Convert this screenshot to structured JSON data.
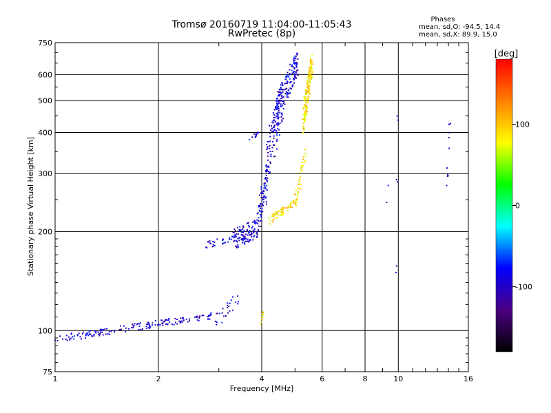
{
  "chart_data": {
    "type": "scatter",
    "title": "Tromsø 20160719 11:04:00-11:05:43",
    "subtitle": "RwPretec (8p)",
    "xlabel": "Frequency [MHz]",
    "ylabel": "Stationary phase Virtual Height [km]",
    "x_scale": "log",
    "y_scale": "log",
    "xlim": [
      1,
      16
    ],
    "ylim": [
      75,
      750
    ],
    "x_ticks": [
      1,
      2,
      4,
      6,
      8,
      10,
      16
    ],
    "x_tick_labels": [
      "1",
      "2",
      "4",
      "6",
      "8",
      "10",
      "16"
    ],
    "y_ticks": [
      75,
      100,
      200,
      300,
      400,
      500,
      600,
      750
    ],
    "y_tick_labels": [
      "75",
      "100",
      "200",
      "300",
      "400",
      "500",
      "600",
      "750"
    ],
    "grid": true,
    "phases_box": {
      "heading": "Phases",
      "line_o": "mean, sd,O: -94.5, 14.4",
      "line_x": "mean, sd,X:  89.9, 15.0"
    },
    "colorbar": {
      "unit_label": "[deg]",
      "ticks": [
        100,
        0,
        -100
      ],
      "tick_labels": [
        "100",
        "0",
        "-100"
      ],
      "range": [
        -180,
        180
      ],
      "colors": [
        "#000000",
        "#4b0082",
        "#0000ff",
        "#00ffff",
        "#00ff00",
        "#ffff00",
        "#ff8000",
        "#ff0000"
      ]
    },
    "series": [
      {
        "mode": "O",
        "phase_deg": -94.5,
        "segments": [
          {
            "f_range": [
              1.0,
              2.9
            ],
            "h_range": [
              94,
              111
            ],
            "count": 170,
            "spread": 2.5
          },
          {
            "f_range": [
              2.95,
              3.45
            ],
            "h_range": [
              107,
              127
            ],
            "count": 25,
            "spread": 6
          },
          {
            "f_range": [
              2.75,
              3.6
            ],
            "h_range": [
              183,
              192
            ],
            "count": 40,
            "spread": 5
          },
          {
            "f_range": [
              3.3,
              3.9
            ],
            "h_range": [
              190,
              205
            ],
            "count": 110,
            "spread": 14
          },
          {
            "f_range": [
              3.9,
              4.15
            ],
            "h_range": [
              210,
              300
            ],
            "count": 70,
            "spread": 25
          },
          {
            "f_range": [
              4.1,
              4.6
            ],
            "h_range": [
              300,
              500
            ],
            "count": 120,
            "spread": 70
          },
          {
            "f_range": [
              4.4,
              5.1
            ],
            "h_range": [
              450,
              650
            ],
            "count": 160,
            "spread": 60
          },
          {
            "f_range": [
              3.7,
              3.95
            ],
            "h_range": [
              385,
              400
            ],
            "count": 12,
            "spread": 6
          },
          {
            "f_range": [
              9.9,
              10.0
            ],
            "h_range": [
              155,
              480
            ],
            "count": 6,
            "spread": 30
          },
          {
            "f_range": [
              13.9,
              14.1
            ],
            "h_range": [
              270,
              440
            ],
            "count": 10,
            "spread": 20
          },
          {
            "f_range": [
              9.2,
              9.3
            ],
            "h_range": [
              170,
              280
            ],
            "count": 2,
            "spread": 5
          }
        ]
      },
      {
        "mode": "X",
        "phase_deg": 89.9,
        "segments": [
          {
            "f_range": [
              4.2,
              5.0
            ],
            "h_range": [
              215,
              245
            ],
            "count": 60,
            "spread": 6
          },
          {
            "f_range": [
              5.0,
              5.4
            ],
            "h_range": [
              240,
              350
            ],
            "count": 45,
            "spread": 15
          },
          {
            "f_range": [
              5.3,
              5.6
            ],
            "h_range": [
              440,
              650
            ],
            "count": 160,
            "spread": 50
          },
          {
            "f_range": [
              3.95,
              4.05
            ],
            "h_range": [
              105,
              115
            ],
            "count": 10,
            "spread": 3
          }
        ]
      }
    ]
  }
}
